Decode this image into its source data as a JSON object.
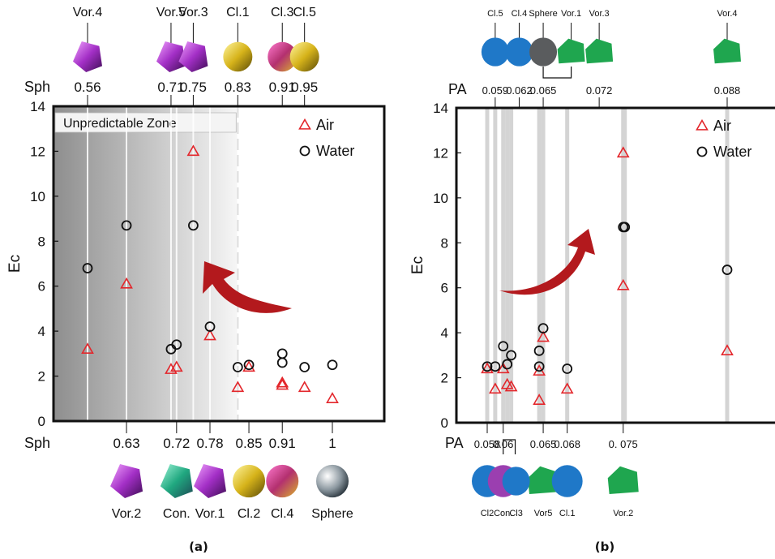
{
  "panel_labels": [
    "(a)",
    "(b)"
  ],
  "chart_data": [
    {
      "type": "scatter",
      "panel": "(a)",
      "ylabel": "Ec",
      "ylim": [
        0,
        14
      ],
      "yticks": [
        0,
        2,
        4,
        6,
        8,
        10,
        12,
        14
      ],
      "xlabel_top": "Sph",
      "xlabel_bottom": "Sph",
      "top_ticks": [
        {
          "label": "0.56",
          "shape": "Vor.4"
        },
        {
          "label": "0.71",
          "shape": "Vor.5"
        },
        {
          "label": "0.75",
          "shape": "Vor.3"
        },
        {
          "label": "0.83",
          "shape": "Cl.1"
        },
        {
          "label": "0.91",
          "shape": "Cl.3"
        },
        {
          "label": "0.95",
          "shape": "Cl.5"
        }
      ],
      "bottom_ticks": [
        {
          "label": "0.63",
          "shape": "Vor.2"
        },
        {
          "label": "0.72",
          "shape": "Con."
        },
        {
          "label": "0.78",
          "shape": "Vor.1"
        },
        {
          "label": "0.85",
          "shape": "Cl.2"
        },
        {
          "label": "0.91",
          "shape": "Cl.4"
        },
        {
          "label": "1",
          "shape": "Sphere"
        }
      ],
      "shaded_zone": {
        "label": "Unpredictable Zone",
        "x_end": 0.83
      },
      "legend": [
        "Air",
        "Water"
      ],
      "legend_position": "top-right",
      "series": [
        {
          "name": "Air",
          "marker": "triangle",
          "color": "#e3262b",
          "points": [
            [
              0.56,
              3.2
            ],
            [
              0.63,
              6.1
            ],
            [
              0.71,
              2.3
            ],
            [
              0.72,
              2.4
            ],
            [
              0.75,
              12
            ],
            [
              0.78,
              3.8
            ],
            [
              0.83,
              1.5
            ],
            [
              0.85,
              2.4
            ],
            [
              0.91,
              1.7
            ],
            [
              0.91,
              1.6
            ],
            [
              0.95,
              1.5
            ],
            [
              1.0,
              1.0
            ]
          ]
        },
        {
          "name": "Water",
          "marker": "circle",
          "color": "#111111",
          "points": [
            [
              0.56,
              6.8
            ],
            [
              0.63,
              8.7
            ],
            [
              0.71,
              3.2
            ],
            [
              0.72,
              3.4
            ],
            [
              0.75,
              8.7
            ],
            [
              0.78,
              4.2
            ],
            [
              0.83,
              2.4
            ],
            [
              0.85,
              2.5
            ],
            [
              0.91,
              3.0
            ],
            [
              0.91,
              2.6
            ],
            [
              0.95,
              2.4
            ],
            [
              1.0,
              2.5
            ]
          ]
        }
      ]
    },
    {
      "type": "scatter",
      "panel": "(b)",
      "ylabel": "Ec",
      "ylim": [
        0,
        14
      ],
      "yticks": [
        0,
        2,
        4,
        6,
        8,
        10,
        12,
        14
      ],
      "xlabel_top": "PA",
      "xlabel_bottom": "PA",
      "top_ticks": [
        {
          "label": "0.059",
          "shape": "Cl.5"
        },
        {
          "label": "0.062",
          "shape": "Cl.4"
        },
        {
          "label": "0.065",
          "shape": "Sphere"
        },
        {
          "label": "0.072",
          "shape": "Vor.3"
        },
        {
          "label": "0.088",
          "shape": "Vor.4"
        }
      ],
      "top_extra_shape": "Vor.1",
      "bottom_ticks": [
        {
          "label": "0.058",
          "shape": "Cl2"
        },
        {
          "label": "0.06",
          "shape": "Con."
        },
        {
          "label": "0.065",
          "shape": "Vor5"
        },
        {
          "label": "0.068",
          "shape": "Cl.1"
        },
        {
          "label": "0. 075",
          "shape": "Vor.2"
        }
      ],
      "bottom_extra_shape": "Cl3",
      "legend": [
        "Air",
        "Water"
      ],
      "legend_position": "top-right",
      "series": [
        {
          "name": "Air",
          "marker": "triangle",
          "color": "#e3262b",
          "points": [
            [
              0.058,
              2.4
            ],
            [
              0.059,
              1.5
            ],
            [
              0.06,
              2.4
            ],
            [
              0.0605,
              1.7
            ],
            [
              0.061,
              1.6
            ],
            [
              0.0645,
              2.3
            ],
            [
              0.0645,
              1.0
            ],
            [
              0.065,
              3.8
            ],
            [
              0.068,
              1.5
            ],
            [
              0.075,
              12
            ],
            [
              0.075,
              6.1
            ],
            [
              0.088,
              3.2
            ]
          ]
        },
        {
          "name": "Water",
          "marker": "circle",
          "color": "#111111",
          "points": [
            [
              0.058,
              2.5
            ],
            [
              0.059,
              2.5
            ],
            [
              0.06,
              3.4
            ],
            [
              0.0605,
              2.6
            ],
            [
              0.061,
              3.0
            ],
            [
              0.0645,
              3.2
            ],
            [
              0.0645,
              2.5
            ],
            [
              0.065,
              4.2
            ],
            [
              0.068,
              2.4
            ],
            [
              0.075,
              8.7
            ],
            [
              0.0752,
              8.7
            ],
            [
              0.088,
              6.8
            ]
          ]
        }
      ]
    }
  ]
}
